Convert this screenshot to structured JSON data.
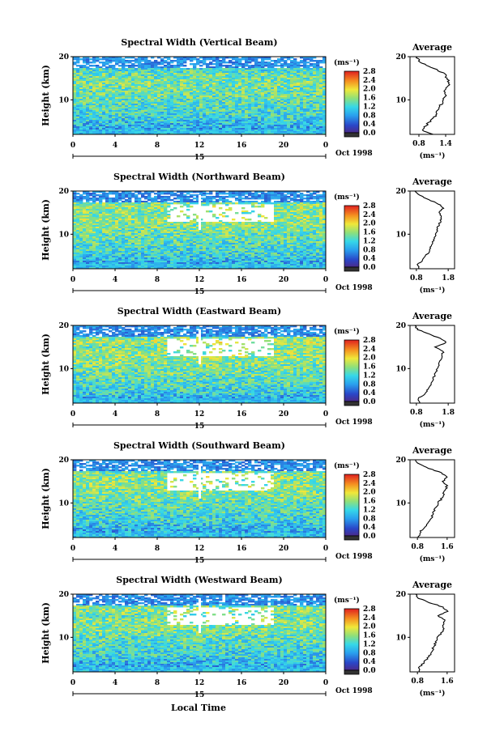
{
  "figure": {
    "shared_xlabel": "Local Time",
    "date_label": "Oct 1998",
    "colorbar_units": "(ms⁻¹)",
    "colorbar_ticks": [
      "0.0",
      "0.4",
      "0.8",
      "1.2",
      "1.6",
      "2.0",
      "2.4",
      "2.8"
    ],
    "average_title": "Average",
    "average_xlabel": "(ms⁻¹)"
  },
  "chart_data": [
    {
      "type": "heatmap",
      "title": "Spectral Width (Vertical Beam)",
      "ylabel": "Height (km)",
      "xlabel": "Local Time",
      "x_ticks": [
        "0",
        "4",
        "8",
        "12",
        "16",
        "20",
        "0"
      ],
      "y_ticks": [
        "10",
        "20"
      ],
      "day_label": "15",
      "xlim": [
        0,
        24
      ],
      "ylim": [
        2,
        20
      ],
      "color_range": [
        0.0,
        2.8
      ],
      "average_profile": {
        "x_ticks": [
          "0.8",
          "1.4"
        ],
        "xlim": [
          0.6,
          1.6
        ],
        "ylim": [
          2,
          20
        ],
        "y_ticks": [
          "10",
          "20"
        ],
        "height_km": [
          2,
          3,
          4,
          5,
          6,
          7,
          8,
          9,
          10,
          11,
          12,
          13,
          14,
          15,
          16,
          17,
          18,
          19,
          20
        ],
        "width_ms": [
          1.1,
          0.85,
          0.95,
          1.05,
          1.15,
          1.2,
          1.25,
          1.3,
          1.35,
          1.4,
          1.38,
          1.45,
          1.48,
          1.42,
          1.4,
          1.2,
          0.95,
          0.8,
          0.75
        ]
      }
    },
    {
      "type": "heatmap",
      "title": "Spectral Width (Northward Beam)",
      "ylabel": "Height (km)",
      "xlabel": "Local Time",
      "x_ticks": [
        "0",
        "4",
        "8",
        "12",
        "16",
        "20",
        "0"
      ],
      "y_ticks": [
        "10",
        "20"
      ],
      "day_label": "15",
      "xlim": [
        0,
        24
      ],
      "ylim": [
        2,
        20
      ],
      "color_range": [
        0.0,
        2.8
      ],
      "average_profile": {
        "x_ticks": [
          "0.8",
          "1.8"
        ],
        "xlim": [
          0.6,
          2.0
        ],
        "ylim": [
          2,
          20
        ],
        "y_ticks": [
          "10",
          "20"
        ],
        "height_km": [
          2,
          3,
          4,
          5,
          6,
          7,
          8,
          9,
          10,
          11,
          12,
          13,
          14,
          15,
          16,
          17,
          18,
          19,
          20
        ],
        "width_ms": [
          0.9,
          0.85,
          1.0,
          1.1,
          1.2,
          1.25,
          1.3,
          1.35,
          1.4,
          1.45,
          1.5,
          1.55,
          1.6,
          1.5,
          1.65,
          1.5,
          1.2,
          0.9,
          0.75
        ]
      }
    },
    {
      "type": "heatmap",
      "title": "Spectral Width (Eastward Beam)",
      "ylabel": "Height (km)",
      "xlabel": "Local Time",
      "x_ticks": [
        "0",
        "4",
        "8",
        "12",
        "16",
        "20",
        "0"
      ],
      "y_ticks": [
        "10",
        "20"
      ],
      "day_label": "15",
      "xlim": [
        0,
        24
      ],
      "ylim": [
        2,
        20
      ],
      "color_range": [
        0.0,
        2.8
      ],
      "average_profile": {
        "x_ticks": [
          "0.8",
          "1.8"
        ],
        "xlim": [
          0.6,
          2.0
        ],
        "ylim": [
          2,
          20
        ],
        "y_ticks": [
          "10",
          "20"
        ],
        "height_km": [
          2,
          3,
          4,
          5,
          6,
          7,
          8,
          9,
          10,
          11,
          12,
          13,
          14,
          15,
          16,
          17,
          18,
          19,
          20
        ],
        "width_ms": [
          0.9,
          0.85,
          1.05,
          1.15,
          1.25,
          1.3,
          1.35,
          1.4,
          1.45,
          1.5,
          1.55,
          1.6,
          1.65,
          1.4,
          1.75,
          1.55,
          1.2,
          0.85,
          0.75
        ]
      }
    },
    {
      "type": "heatmap",
      "title": "Spectral Width (Southward Beam)",
      "ylabel": "Height (km)",
      "xlabel": "Local Time",
      "x_ticks": [
        "0",
        "4",
        "8",
        "12",
        "16",
        "20",
        "0"
      ],
      "y_ticks": [
        "10",
        "20"
      ],
      "day_label": "15",
      "xlim": [
        0,
        24
      ],
      "ylim": [
        2,
        20
      ],
      "color_range": [
        0.0,
        2.8
      ],
      "average_profile": {
        "x_ticks": [
          "0.8",
          "1.6"
        ],
        "xlim": [
          0.6,
          1.8
        ],
        "ylim": [
          2,
          20
        ],
        "y_ticks": [
          "10",
          "20"
        ],
        "height_km": [
          2,
          3,
          4,
          5,
          6,
          7,
          8,
          9,
          10,
          11,
          12,
          13,
          14,
          15,
          16,
          17,
          18,
          19,
          20
        ],
        "width_ms": [
          0.85,
          0.85,
          0.95,
          1.05,
          1.15,
          1.2,
          1.25,
          1.3,
          1.35,
          1.45,
          1.5,
          1.55,
          1.6,
          1.5,
          1.6,
          1.45,
          1.1,
          0.85,
          0.75
        ]
      }
    },
    {
      "type": "heatmap",
      "title": "Spectral Width (Westward Beam)",
      "ylabel": "Height (km)",
      "xlabel": "Local Time",
      "x_ticks": [
        "0",
        "4",
        "8",
        "12",
        "16",
        "20",
        "0"
      ],
      "y_ticks": [
        "10",
        "20"
      ],
      "day_label": "15",
      "xlim": [
        0,
        24
      ],
      "ylim": [
        2,
        20
      ],
      "color_range": [
        0.0,
        2.8
      ],
      "average_profile": {
        "x_ticks": [
          "0.8",
          "1.6"
        ],
        "xlim": [
          0.6,
          1.8
        ],
        "ylim": [
          2,
          20
        ],
        "y_ticks": [
          "10",
          "20"
        ],
        "height_km": [
          2,
          3,
          4,
          5,
          6,
          7,
          8,
          9,
          10,
          11,
          12,
          13,
          14,
          15,
          16,
          17,
          18,
          19,
          20
        ],
        "width_ms": [
          0.85,
          0.85,
          0.95,
          1.05,
          1.15,
          1.2,
          1.25,
          1.3,
          1.35,
          1.45,
          1.5,
          1.5,
          1.55,
          1.35,
          1.6,
          1.5,
          1.15,
          0.85,
          0.75
        ]
      }
    }
  ]
}
